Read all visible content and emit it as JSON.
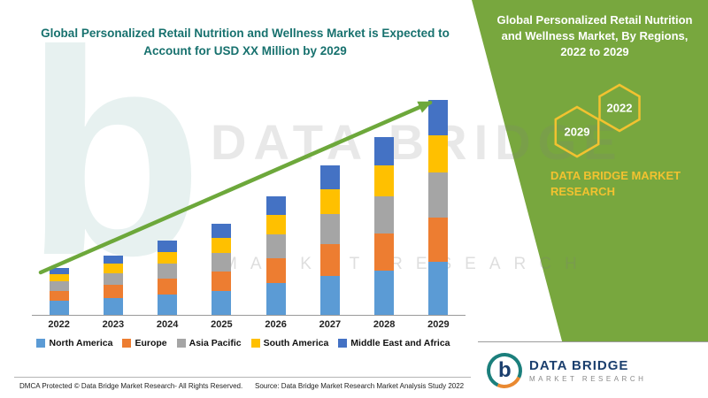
{
  "header": {
    "title": "Global Personalized Retail Nutrition and Wellness Market is Expected to Account for USD XX Million by 2029",
    "title_color": "#17716e"
  },
  "side_panel": {
    "title": "Global Personalized Retail Nutrition and Wellness Market, By Regions, 2022 to 2029",
    "hexagons": [
      {
        "label": "2029"
      },
      {
        "label": "2022"
      }
    ],
    "brand_text": "DATA BRIDGE MARKET RESEARCH",
    "panel_color": "#78a73e",
    "accent_yellow": "#f2c230"
  },
  "watermark": {
    "big_letter": "b",
    "line1": "DATA BRIDGE",
    "line2": "MARKET RESEARCH"
  },
  "logo_box": {
    "monogram": "b",
    "name": "DATA BRIDGE",
    "subtitle": "MARKET RESEARCH"
  },
  "footer": {
    "dmca": "DMCA Protected © Data Bridge Market Research- All Rights Reserved.",
    "source": "Source: Data Bridge Market Research Market Analysis Study 2022"
  },
  "arrow_color": "#6da83b",
  "chart_data": {
    "type": "bar",
    "stacked": true,
    "title": "Global Personalized Retail Nutrition and Wellness Market, By Regions, 2022 to 2029",
    "xlabel": "",
    "ylabel": "",
    "ylim": [
      0,
      50
    ],
    "grid": false,
    "legend_position": "bottom",
    "axis_color": "#9a9a9a",
    "categories": [
      "2022",
      "2023",
      "2024",
      "2025",
      "2026",
      "2027",
      "2028",
      "2029"
    ],
    "series": [
      {
        "name": "North America",
        "color": "#5b9bd5",
        "values": [
          3.0,
          3.6,
          4.4,
          5.2,
          6.8,
          8.4,
          9.6,
          11.4
        ]
      },
      {
        "name": "Europe",
        "color": "#ed7d31",
        "values": [
          2.2,
          2.8,
          3.4,
          4.2,
          5.4,
          6.8,
          8.0,
          9.6
        ]
      },
      {
        "name": "Asia Pacific",
        "color": "#a5a5a5",
        "values": [
          2.0,
          2.6,
          3.2,
          4.0,
          5.2,
          6.6,
          8.0,
          9.8
        ]
      },
      {
        "name": "South America",
        "color": "#ffc000",
        "values": [
          1.6,
          2.0,
          2.6,
          3.2,
          4.2,
          5.4,
          6.6,
          8.0
        ]
      },
      {
        "name": "Middle East and Africa",
        "color": "#4472c4",
        "values": [
          1.4,
          1.8,
          2.4,
          3.0,
          4.0,
          5.0,
          6.2,
          7.6
        ]
      }
    ]
  }
}
